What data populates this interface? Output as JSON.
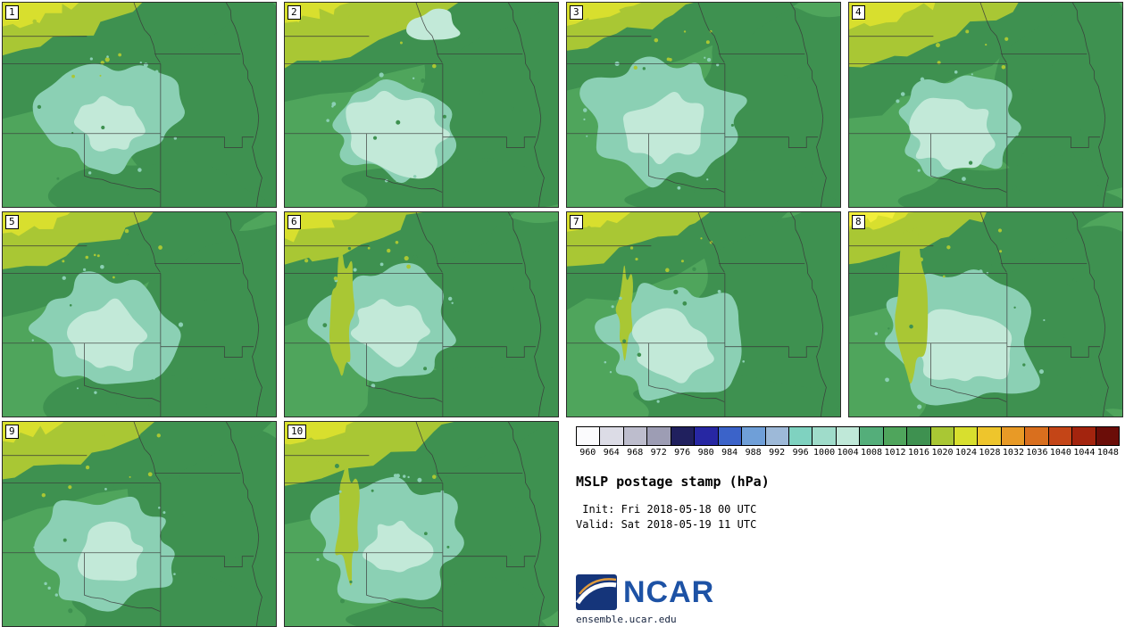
{
  "product": {
    "title": "MSLP postage stamp (hPa)",
    "init": " Init: Fri 2018-05-18 00 UTC",
    "valid": "Valid: Sat 2018-05-19 11 UTC"
  },
  "branding": {
    "logo_text": "NCAR",
    "url": "ensemble.ucar.edu"
  },
  "panels": [
    {
      "label": "1",
      "features": {}
    },
    {
      "label": "2",
      "features": {
        "top_pale_patch": true,
        "large_pale_core": true
      }
    },
    {
      "label": "3",
      "features": {}
    },
    {
      "label": "4",
      "features": {}
    },
    {
      "label": "5",
      "features": {}
    },
    {
      "label": "6",
      "features": {
        "west_streak": "medium"
      }
    },
    {
      "label": "7",
      "features": {
        "west_streak": "small"
      }
    },
    {
      "label": "8",
      "features": {
        "west_streak": "large",
        "bright_corner": true
      }
    },
    {
      "label": "9",
      "features": {}
    },
    {
      "label": "10",
      "features": {
        "west_streak": "medium"
      }
    }
  ],
  "colorbar": {
    "ticks": [
      "960",
      "964",
      "968",
      "972",
      "976",
      "980",
      "984",
      "988",
      "992",
      "996",
      "1000",
      "1004",
      "1008",
      "1012",
      "1016",
      "1020",
      "1024",
      "1028",
      "1032",
      "1036",
      "1040",
      "1044",
      "1048"
    ],
    "colors": [
      "#FBFBFD",
      "#DCDCE6",
      "#BDBDCD",
      "#9D9DB4",
      "#20205E",
      "#2727A3",
      "#3B63C9",
      "#6F9FD8",
      "#9DB9D8",
      "#7FD2C0",
      "#9FDCCA",
      "#BFE8D8",
      "#54AE7A",
      "#4FA55C",
      "#3E9150",
      "#A9C734",
      "#D8DF2E",
      "#EEC52C",
      "#E89A26",
      "#D96F1E",
      "#C44517",
      "#A3240E",
      "#6B0D08"
    ]
  },
  "map_palette": {
    "base_green": "#4FA55C",
    "dark_green": "#3E9150",
    "yellow_green": "#A9C734",
    "yellow": "#D8DF2E",
    "bright_yellow": "#F2EE3B",
    "teal": "#8BD0B4",
    "pale_teal": "#C2E9D8",
    "border_line": "#3A3A3A",
    "ncar_blue": "#1D52A5"
  }
}
